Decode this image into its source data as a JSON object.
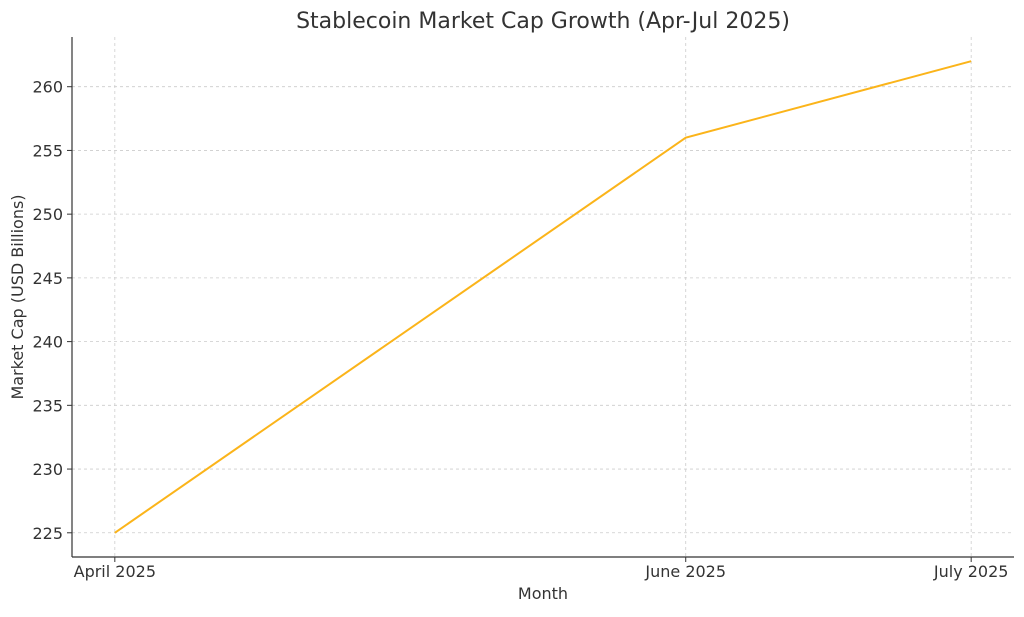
{
  "chart_data": {
    "type": "line",
    "title": "Stablecoin Market Cap Growth (Apr-Jul 2025)",
    "xlabel": "Month",
    "ylabel": "Market Cap (USD Billions)",
    "categories": [
      "April 2025",
      "June 2025",
      "July 2025"
    ],
    "x_positions": [
      0,
      2,
      3
    ],
    "series": [
      {
        "values": [
          225,
          256,
          262
        ],
        "color": "#FBB41A"
      }
    ],
    "ylim": [
      223.1,
      263.9
    ],
    "xlim": [
      -0.15,
      3.15
    ],
    "yticks": [
      225,
      230,
      235,
      240,
      245,
      250,
      255,
      260
    ],
    "grid": true,
    "legend": "none"
  }
}
